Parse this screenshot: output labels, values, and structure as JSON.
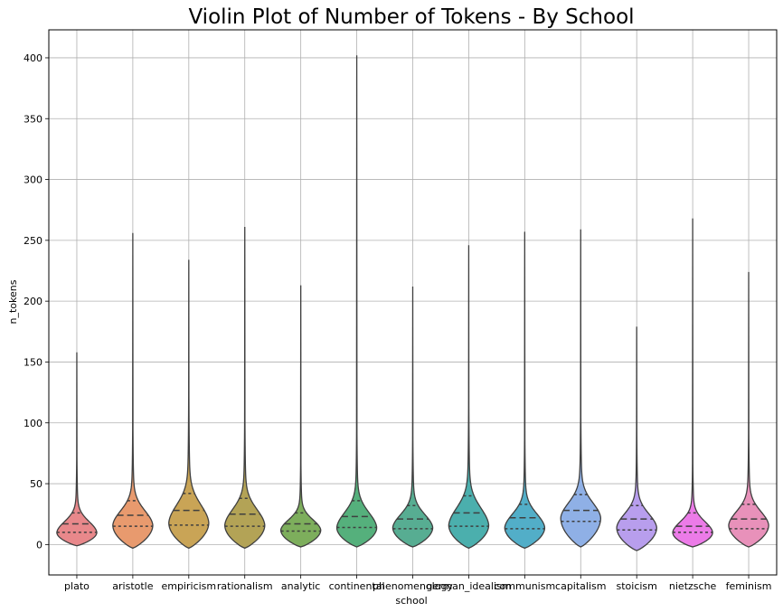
{
  "chart_data": {
    "type": "violin",
    "title": "Violin Plot of Number of Tokens - By School",
    "xlabel": "school",
    "ylabel": "n_tokens",
    "ylim": [
      -25,
      423
    ],
    "yticks": [
      0,
      50,
      100,
      150,
      200,
      250,
      300,
      350,
      400
    ],
    "grid": true,
    "inner": "quartile",
    "categories": [
      "plato",
      "aristotle",
      "empiricism",
      "rationalism",
      "analytic",
      "continental",
      "phenomenology",
      "german_idealism",
      "communism",
      "capitalism",
      "stoicism",
      "nietzsche",
      "feminism"
    ],
    "colors": [
      "#e8888b",
      "#e89a6e",
      "#c9a456",
      "#b3a356",
      "#7dae5c",
      "#55b07c",
      "#57ad92",
      "#4bafad",
      "#52aec8",
      "#8fb0e6",
      "#b89eed",
      "#ec7be8",
      "#e891ba"
    ],
    "series": [
      {
        "category": "plato",
        "min": -1,
        "q1": 10,
        "median": 17,
        "q3": 26,
        "max": 158,
        "peak": 10,
        "width": 0.85
      },
      {
        "category": "aristotle",
        "min": -3,
        "q1": 15,
        "median": 24,
        "q3": 36,
        "max": 256,
        "peak": 16,
        "width": 0.85
      },
      {
        "category": "empiricism",
        "min": -3,
        "q1": 16,
        "median": 28,
        "q3": 42,
        "max": 234,
        "peak": 18,
        "width": 0.85
      },
      {
        "category": "rationalism",
        "min": -3,
        "q1": 15,
        "median": 25,
        "q3": 38,
        "max": 261,
        "peak": 16,
        "width": 0.85
      },
      {
        "category": "analytic",
        "min": -2,
        "q1": 11,
        "median": 17,
        "q3": 26,
        "max": 213,
        "peak": 12,
        "width": 0.85
      },
      {
        "category": "continental",
        "min": -2,
        "q1": 14,
        "median": 23,
        "q3": 36,
        "max": 402,
        "peak": 14,
        "width": 0.85
      },
      {
        "category": "phenomenology",
        "min": -2,
        "q1": 13,
        "median": 21,
        "q3": 32,
        "max": 212,
        "peak": 14,
        "width": 0.85
      },
      {
        "category": "german_idealism",
        "min": -3,
        "q1": 15,
        "median": 26,
        "q3": 40,
        "max": 246,
        "peak": 16,
        "width": 0.85
      },
      {
        "category": "communism",
        "min": -3,
        "q1": 13,
        "median": 22,
        "q3": 33,
        "max": 257,
        "peak": 14,
        "width": 0.85
      },
      {
        "category": "capitalism",
        "min": -2,
        "q1": 19,
        "median": 28,
        "q3": 41,
        "max": 259,
        "peak": 22,
        "width": 0.85
      },
      {
        "category": "stoicism",
        "min": -5,
        "q1": 12,
        "median": 21,
        "q3": 32,
        "max": 179,
        "peak": 14,
        "width": 0.85
      },
      {
        "category": "nietzsche",
        "min": -2,
        "q1": 10,
        "median": 15,
        "q3": 26,
        "max": 268,
        "peak": 10,
        "width": 0.85
      },
      {
        "category": "feminism",
        "min": -2,
        "q1": 13,
        "median": 21,
        "q3": 33,
        "max": 224,
        "peak": 16,
        "width": 0.85
      }
    ]
  }
}
